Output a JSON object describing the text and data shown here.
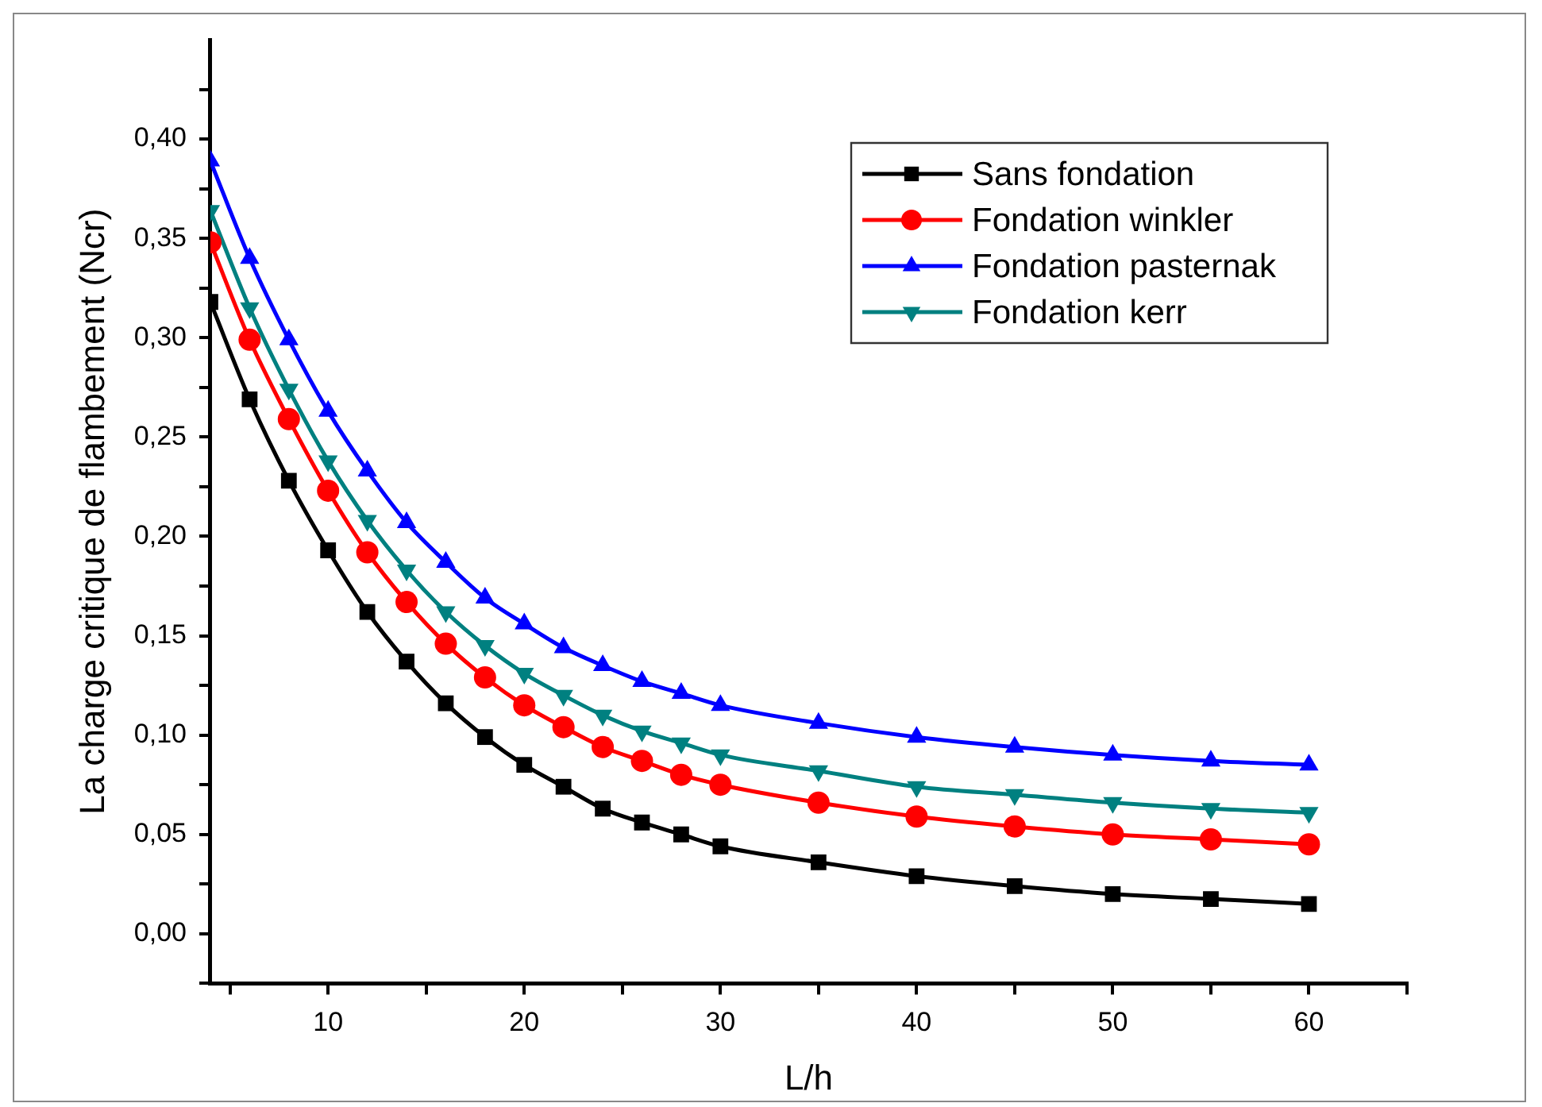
{
  "chart_data": {
    "type": "line",
    "xlabel": "L/h",
    "ylabel": "La charge critique de flambement (Ncr)",
    "x": [
      4,
      6,
      8,
      10,
      12,
      14,
      16,
      18,
      20,
      22,
      24,
      26,
      28,
      30,
      35,
      40,
      45,
      50,
      55,
      60
    ],
    "series": [
      {
        "name": "Sans fondation",
        "color": "#000000",
        "marker": "square",
        "values": [
          0.318,
          0.269,
          0.228,
          0.193,
          0.162,
          0.137,
          0.116,
          0.099,
          0.085,
          0.074,
          0.063,
          0.056,
          0.05,
          0.044,
          0.036,
          0.029,
          0.024,
          0.02,
          0.0175,
          0.015
        ]
      },
      {
        "name": "Fondation winkler",
        "color": "#ff0000",
        "marker": "circle",
        "values": [
          0.348,
          0.299,
          0.259,
          0.223,
          0.192,
          0.167,
          0.146,
          0.129,
          0.115,
          0.104,
          0.094,
          0.087,
          0.08,
          0.075,
          0.066,
          0.059,
          0.054,
          0.05,
          0.0475,
          0.045
        ]
      },
      {
        "name": "Fondation pasternak",
        "color": "#0000ff",
        "marker": "triangle",
        "values": [
          0.389,
          0.34,
          0.299,
          0.263,
          0.233,
          0.207,
          0.187,
          0.169,
          0.156,
          0.144,
          0.135,
          0.127,
          0.121,
          0.115,
          0.106,
          0.099,
          0.094,
          0.09,
          0.087,
          0.085
        ]
      },
      {
        "name": "Fondation kerr",
        "color": "#008080",
        "marker": "triangle-down",
        "values": [
          0.364,
          0.315,
          0.274,
          0.238,
          0.208,
          0.183,
          0.162,
          0.145,
          0.131,
          0.12,
          0.11,
          0.102,
          0.096,
          0.09,
          0.082,
          0.074,
          0.07,
          0.066,
          0.063,
          0.061
        ]
      }
    ],
    "xlim": [
      4,
      65
    ],
    "xticks": [
      {
        "value": 5,
        "label": null
      },
      10,
      {
        "value": 15,
        "label": null
      },
      20,
      {
        "value": 25,
        "label": null
      },
      30,
      {
        "value": 35,
        "label": null
      },
      40,
      {
        "value": 45,
        "label": null
      },
      50,
      {
        "value": 55,
        "label": null
      },
      60,
      {
        "value": 65,
        "label": null
      }
    ],
    "ylim": [
      -0.025,
      0.45
    ],
    "yticks": [
      {
        "value": -0.025,
        "label": null
      },
      {
        "value": 0,
        "label": "0,00"
      },
      {
        "value": 0.025,
        "label": null
      },
      {
        "value": 0.05,
        "label": "0,05"
      },
      {
        "value": 0.075,
        "label": null
      },
      {
        "value": 0.1,
        "label": "0,10"
      },
      {
        "value": 0.125,
        "label": null
      },
      {
        "value": 0.15,
        "label": "0,15"
      },
      {
        "value": 0.175,
        "label": null
      },
      {
        "value": 0.2,
        "label": "0,20"
      },
      {
        "value": 0.225,
        "label": null
      },
      {
        "value": 0.25,
        "label": "0,25"
      },
      {
        "value": 0.275,
        "label": null
      },
      {
        "value": 0.3,
        "label": "0,30"
      },
      {
        "value": 0.325,
        "label": null
      },
      {
        "value": 0.35,
        "label": "0,35"
      },
      {
        "value": 0.375,
        "label": null
      },
      {
        "value": 0.4,
        "label": "0,40"
      },
      {
        "value": 0.425,
        "label": null
      }
    ],
    "grid": false,
    "legend": "top right",
    "line_style": "solid"
  }
}
